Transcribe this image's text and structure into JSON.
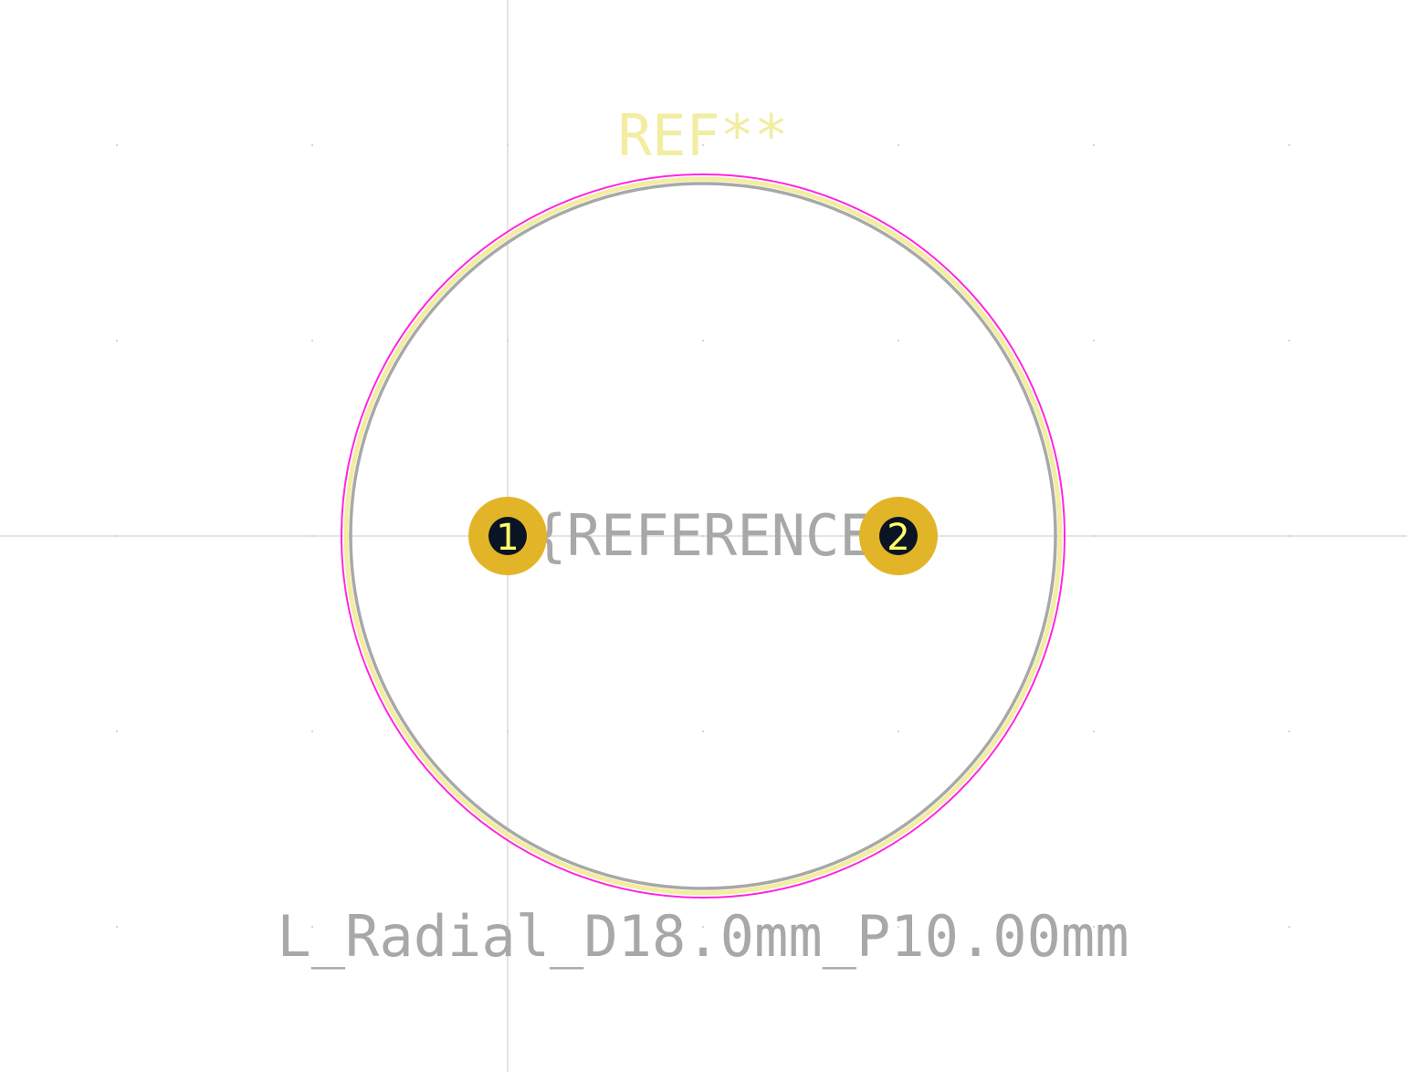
{
  "footprint": {
    "reference": "REF**",
    "reference_field": "${REFERENCE}",
    "value": "L_Radial_D18.0mm_P10.00mm"
  },
  "pads": [
    {
      "number": "1"
    },
    {
      "number": "2"
    }
  ],
  "colors": {
    "background": "#ffffff",
    "silkscreen": "#f2eda1",
    "fab": "#a8a8a8",
    "courtyard": "#ff26e2",
    "pad": "#e2b428",
    "drill": "#0b1425",
    "pad_number": "#ffff66",
    "axis": "#c8c8c8",
    "grid_dot": "#c8c8c8"
  }
}
